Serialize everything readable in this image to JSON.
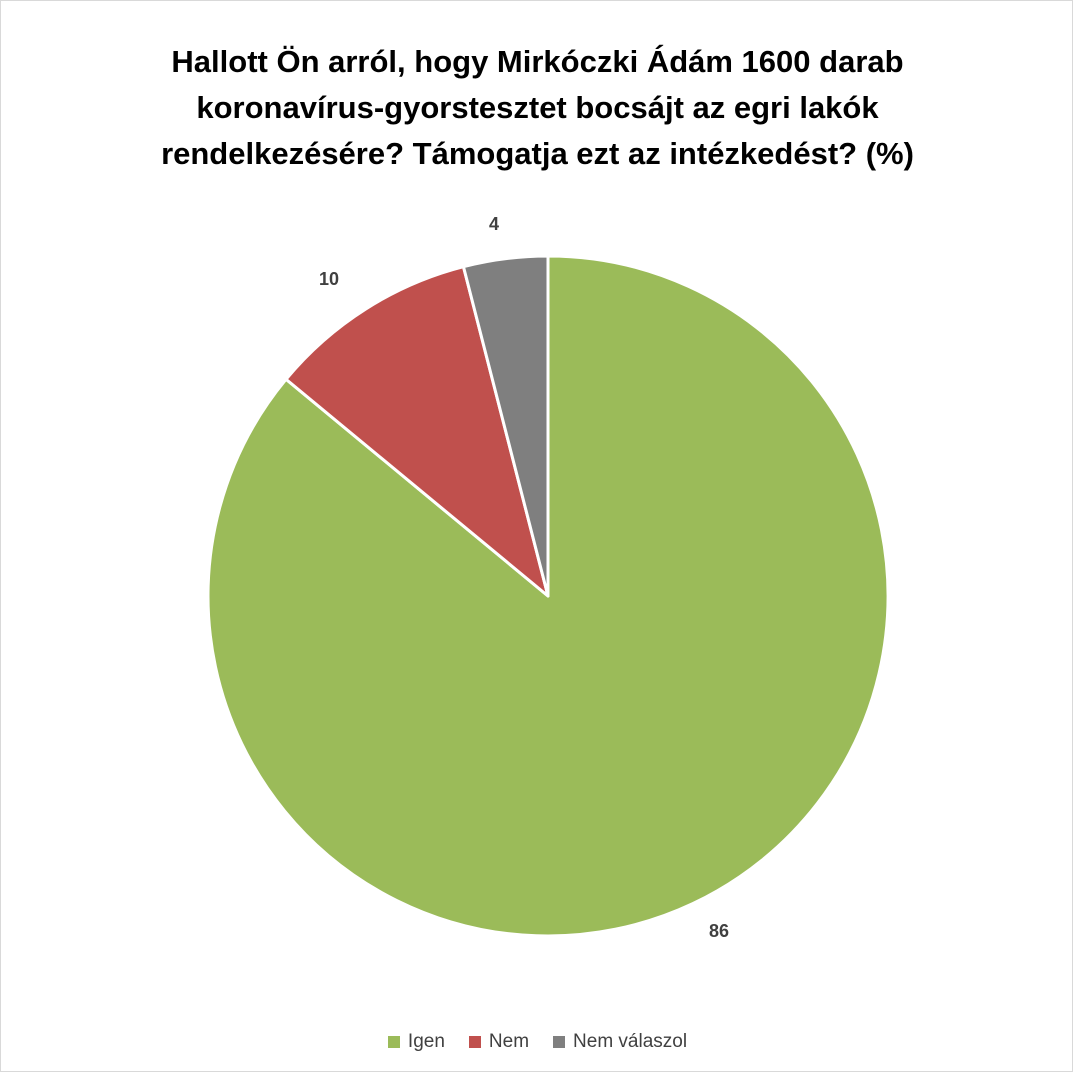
{
  "chart_data": {
    "type": "pie",
    "title_lines": [
      "Hallott Ön arról, hogy Mirkóczki Ádám 1600 darab",
      "koronavírus-gyorstesztet bocsájt az egri lakók",
      "rendelkezésére? Támogatja ezt az intézkedést? (%)"
    ],
    "categories": [
      "Igen",
      "Nem",
      "Nem válaszol"
    ],
    "values": [
      86,
      10,
      4
    ],
    "data_labels": [
      "86",
      "10",
      "4"
    ],
    "colors": [
      "#9bbb59",
      "#c0504d",
      "#7f7f7f"
    ],
    "start_angle": "12 o'clock, clockwise order: Igen, Nem, Nem válaszol",
    "legend_position": "bottom"
  }
}
